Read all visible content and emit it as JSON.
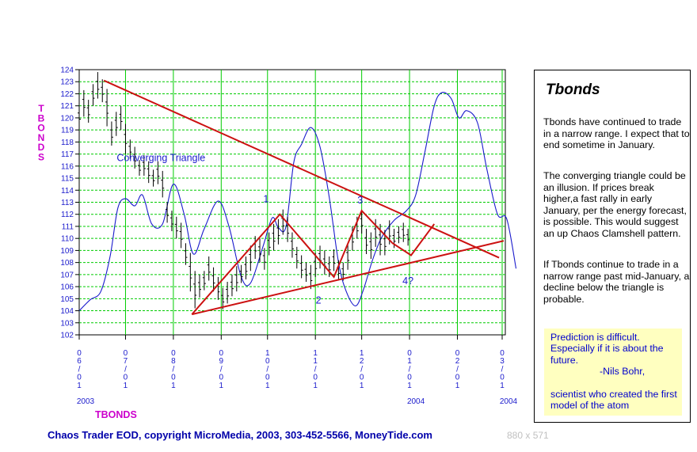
{
  "chart_data": {
    "type": "bar",
    "subtype": "ohlc-price-with-overlay-line",
    "symbol": "TBONDS",
    "ylabel_vertical": "TBONDS",
    "ylim": [
      102,
      124
    ],
    "y_ticks": [
      102,
      103,
      104,
      105,
      106,
      107,
      108,
      109,
      110,
      111,
      112,
      113,
      114,
      115,
      116,
      117,
      118,
      119,
      120,
      121,
      122,
      123,
      124
    ],
    "x_ticks": [
      {
        "date": "2003-06-01",
        "label": [
          "0",
          "6",
          "/",
          "0",
          "1"
        ]
      },
      {
        "date": "2003-07-01",
        "label": [
          "0",
          "7",
          "/",
          "0",
          "1"
        ]
      },
      {
        "date": "2003-08-01",
        "label": [
          "0",
          "8",
          "/",
          "0",
          "1"
        ]
      },
      {
        "date": "2003-09-01",
        "label": [
          "0",
          "9",
          "/",
          "0",
          "1"
        ]
      },
      {
        "date": "2003-10-01",
        "label": [
          "1",
          "0",
          "/",
          "0",
          "1"
        ]
      },
      {
        "date": "2003-11-01",
        "label": [
          "1",
          "1",
          "/",
          "0",
          "1"
        ]
      },
      {
        "date": "2003-12-01",
        "label": [
          "1",
          "2",
          "/",
          "0",
          "1"
        ]
      },
      {
        "date": "2004-01-01",
        "label": [
          "0",
          "1",
          "/",
          "0",
          "1"
        ]
      },
      {
        "date": "2004-02-01",
        "label": [
          "0",
          "2",
          "/",
          "0",
          "1"
        ]
      },
      {
        "date": "2004-03-01",
        "label": [
          "0",
          "3",
          "/",
          "0",
          "1"
        ]
      }
    ],
    "year_labels": [
      {
        "date": "2003-06-01",
        "text": "2003"
      },
      {
        "date": "2004-01-01",
        "text": "2004"
      },
      {
        "date": "2004-03-01",
        "text": "2004"
      }
    ],
    "grid": true,
    "price_bars": [
      {
        "date": "2003-06-01",
        "high": 121.0,
        "low": 119.3
      },
      {
        "date": "2003-06-04",
        "high": 122.3,
        "low": 120.1
      },
      {
        "date": "2003-06-07",
        "high": 121.5,
        "low": 119.6
      },
      {
        "date": "2003-06-10",
        "high": 122.8,
        "low": 121.0
      },
      {
        "date": "2003-06-13",
        "high": 123.8,
        "low": 121.6
      },
      {
        "date": "2003-06-16",
        "high": 123.2,
        "low": 121.3
      },
      {
        "date": "2003-06-19",
        "high": 122.4,
        "low": 119.3
      },
      {
        "date": "2003-06-22",
        "high": 119.7,
        "low": 117.7
      },
      {
        "date": "2003-06-25",
        "high": 120.5,
        "low": 118.5
      },
      {
        "date": "2003-06-28",
        "high": 121.0,
        "low": 119.0
      },
      {
        "date": "2003-07-01",
        "high": 119.5,
        "low": 117.0
      },
      {
        "date": "2003-07-04",
        "high": 118.2,
        "low": 116.6
      },
      {
        "date": "2003-07-07",
        "high": 117.6,
        "low": 115.8
      },
      {
        "date": "2003-07-10",
        "high": 116.5,
        "low": 115.2
      },
      {
        "date": "2003-07-13",
        "high": 116.9,
        "low": 115.2
      },
      {
        "date": "2003-07-16",
        "high": 116.4,
        "low": 114.6
      },
      {
        "date": "2003-07-19",
        "high": 115.7,
        "low": 114.3
      },
      {
        "date": "2003-07-22",
        "high": 116.4,
        "low": 114.5
      },
      {
        "date": "2003-07-25",
        "high": 115.6,
        "low": 113.4
      },
      {
        "date": "2003-07-28",
        "high": 113.0,
        "low": 111.3
      },
      {
        "date": "2003-07-31",
        "high": 112.3,
        "low": 110.6
      },
      {
        "date": "2003-08-03",
        "high": 111.8,
        "low": 110.0
      },
      {
        "date": "2003-08-06",
        "high": 111.3,
        "low": 109.2
      },
      {
        "date": "2003-08-09",
        "high": 109.6,
        "low": 107.8
      },
      {
        "date": "2003-08-12",
        "high": 108.8,
        "low": 105.6
      },
      {
        "date": "2003-08-15",
        "high": 107.3,
        "low": 104.2
      },
      {
        "date": "2003-08-18",
        "high": 107.0,
        "low": 105.1
      },
      {
        "date": "2003-08-21",
        "high": 107.3,
        "low": 105.7
      },
      {
        "date": "2003-08-24",
        "high": 108.5,
        "low": 106.5
      },
      {
        "date": "2003-08-27",
        "high": 107.6,
        "low": 105.6
      },
      {
        "date": "2003-08-30",
        "high": 106.8,
        "low": 104.9
      },
      {
        "date": "2003-09-02",
        "high": 105.9,
        "low": 104.1
      },
      {
        "date": "2003-09-05",
        "high": 106.4,
        "low": 104.6
      },
      {
        "date": "2003-09-08",
        "high": 107.0,
        "low": 105.2
      },
      {
        "date": "2003-09-11",
        "high": 107.7,
        "low": 105.6
      },
      {
        "date": "2003-09-14",
        "high": 107.8,
        "low": 106.3
      },
      {
        "date": "2003-09-17",
        "high": 108.5,
        "low": 106.6
      },
      {
        "date": "2003-09-20",
        "high": 109.4,
        "low": 107.3
      },
      {
        "date": "2003-09-23",
        "high": 110.2,
        "low": 108.3
      },
      {
        "date": "2003-09-26",
        "high": 110.0,
        "low": 108.0
      },
      {
        "date": "2003-09-29",
        "high": 109.2,
        "low": 107.4
      },
      {
        "date": "2003-10-02",
        "high": 110.5,
        "low": 108.6
      },
      {
        "date": "2003-10-05",
        "high": 111.2,
        "low": 109.0
      },
      {
        "date": "2003-10-08",
        "high": 111.6,
        "low": 109.5
      },
      {
        "date": "2003-10-11",
        "high": 112.4,
        "low": 110.3
      },
      {
        "date": "2003-10-14",
        "high": 111.8,
        "low": 109.7
      },
      {
        "date": "2003-10-17",
        "high": 110.5,
        "low": 108.4
      },
      {
        "date": "2003-10-20",
        "high": 109.3,
        "low": 107.5
      },
      {
        "date": "2003-10-23",
        "high": 108.6,
        "low": 106.7
      },
      {
        "date": "2003-10-26",
        "high": 108.0,
        "low": 106.4
      },
      {
        "date": "2003-10-29",
        "high": 107.8,
        "low": 105.8
      },
      {
        "date": "2003-11-01",
        "high": 108.8,
        "low": 106.8
      },
      {
        "date": "2003-11-04",
        "high": 109.4,
        "low": 107.5
      },
      {
        "date": "2003-11-07",
        "high": 109.0,
        "low": 107.0
      },
      {
        "date": "2003-11-10",
        "high": 108.5,
        "low": 106.8
      },
      {
        "date": "2003-11-13",
        "high": 109.1,
        "low": 107.3
      },
      {
        "date": "2003-11-16",
        "high": 108.2,
        "low": 106.5
      },
      {
        "date": "2003-11-19",
        "high": 108.0,
        "low": 106.5
      },
      {
        "date": "2003-11-22",
        "high": 109.6,
        "low": 107.4
      },
      {
        "date": "2003-11-25",
        "high": 111.0,
        "low": 109.0
      },
      {
        "date": "2003-11-28",
        "high": 111.8,
        "low": 110.0
      },
      {
        "date": "2003-12-01",
        "high": 112.3,
        "low": 110.4
      },
      {
        "date": "2003-12-04",
        "high": 110.8,
        "low": 108.7
      },
      {
        "date": "2003-12-07",
        "high": 110.5,
        "low": 108.3
      },
      {
        "date": "2003-12-10",
        "high": 111.6,
        "low": 109.3
      },
      {
        "date": "2003-12-13",
        "high": 111.2,
        "low": 108.6
      },
      {
        "date": "2003-12-16",
        "high": 110.7,
        "low": 108.6
      },
      {
        "date": "2003-12-19",
        "high": 111.5,
        "low": 109.5
      },
      {
        "date": "2003-12-22",
        "high": 110.8,
        "low": 109.2
      },
      {
        "date": "2003-12-25",
        "high": 111.0,
        "low": 109.6
      },
      {
        "date": "2003-12-28",
        "high": 111.3,
        "low": 109.7
      },
      {
        "date": "2003-12-31",
        "high": 110.8,
        "low": 109.4
      }
    ],
    "overlay_line": {
      "color": "#1a1acc",
      "points": [
        [
          "2003-06-01",
          104.0
        ],
        [
          "2003-06-08",
          104.9
        ],
        [
          "2003-06-15",
          105.6
        ],
        [
          "2003-06-21",
          108.5
        ],
        [
          "2003-06-26",
          112.5
        ],
        [
          "2003-07-01",
          113.3
        ],
        [
          "2003-07-07",
          112.7
        ],
        [
          "2003-07-12",
          113.6
        ],
        [
          "2003-07-18",
          111.2
        ],
        [
          "2003-07-25",
          111.2
        ],
        [
          "2003-08-01",
          114.5
        ],
        [
          "2003-08-08",
          112.0
        ],
        [
          "2003-08-14",
          108.7
        ],
        [
          "2003-08-21",
          110.8
        ],
        [
          "2003-08-30",
          113.1
        ],
        [
          "2003-09-06",
          111.0
        ],
        [
          "2003-09-14",
          106.8
        ],
        [
          "2003-09-20",
          106.3
        ],
        [
          "2003-09-28",
          109.3
        ],
        [
          "2003-10-04",
          111.7
        ],
        [
          "2003-10-08",
          110.9
        ],
        [
          "2003-10-13",
          111.0
        ],
        [
          "2003-10-18",
          116.3
        ],
        [
          "2003-10-23",
          117.8
        ],
        [
          "2003-10-29",
          119.2
        ],
        [
          "2003-11-04",
          117.6
        ],
        [
          "2003-11-10",
          113.4
        ],
        [
          "2003-11-16",
          108.0
        ],
        [
          "2003-11-21",
          105.6
        ],
        [
          "2003-11-27",
          104.4
        ],
        [
          "2003-12-02",
          105.7
        ],
        [
          "2003-12-08",
          108.2
        ],
        [
          "2003-12-14",
          110.1
        ],
        [
          "2003-12-22",
          111.5
        ],
        [
          "2003-12-30",
          112.3
        ],
        [
          "2004-01-05",
          113.6
        ],
        [
          "2004-01-11",
          117.2
        ],
        [
          "2004-01-17",
          121.0
        ],
        [
          "2004-01-22",
          122.1
        ],
        [
          "2004-01-28",
          121.6
        ],
        [
          "2004-02-02",
          120.0
        ],
        [
          "2004-02-07",
          120.6
        ],
        [
          "2004-02-14",
          119.6
        ],
        [
          "2004-02-20",
          115.8
        ],
        [
          "2004-02-27",
          112.0
        ],
        [
          "2004-03-04",
          111.6
        ],
        [
          "2004-03-10",
          107.5
        ]
      ]
    },
    "trendlines": [
      {
        "name": "upper-triangle-line",
        "from": [
          "2003-06-17",
          123.1
        ],
        "to": [
          "2004-02-28",
          108.4
        ]
      },
      {
        "name": "lower-triangle-line",
        "from": [
          "2003-08-13",
          103.7
        ],
        "to": [
          "2004-03-02",
          109.8
        ]
      },
      {
        "name": "zigzag",
        "points": [
          [
            "2003-08-13",
            103.7
          ],
          [
            "2003-10-09",
            112.0
          ],
          [
            "2003-11-13",
            106.8
          ],
          [
            "2003-12-01",
            112.3
          ],
          [
            "2003-12-21",
            109.6
          ],
          [
            "2004-01-02",
            108.6
          ],
          [
            "2004-01-17",
            111.2
          ]
        ]
      }
    ],
    "annotations": [
      {
        "text": "Converging Triangle",
        "date": "2003-07-24",
        "price": 116.4
      },
      {
        "text": "1",
        "date": "2003-09-30",
        "price": 113.0
      },
      {
        "text": "2",
        "date": "2003-11-03",
        "price": 104.6
      },
      {
        "text": "3",
        "date": "2003-11-30",
        "price": 112.9
      },
      {
        "text": "4?",
        "date": "2003-12-31",
        "price": 106.2
      }
    ],
    "x_axis_title": "TBONDS"
  },
  "sidebar": {
    "title": "Tbonds",
    "paragraphs": [
      "Tbonds have continued to trade in a narrow range. I expect that to end sometime in January.",
      "The converging triangle could be an illusion. If prices break higher,a fast rally in early January,  per the energy forecast, is possible. This would suggest an up Chaos Clamshell pattern.",
      "If Tbonds continue to trade in a narrow range past mid-January, a decline below the triangle is probable."
    ],
    "quote": {
      "line1": "Prediction is difficult. Especially if it is about the future.",
      "author": "-Nils Bohr,",
      "line2": "scientist who created the first model of the atom"
    }
  },
  "footer": {
    "credit": "Chaos Trader EOD, copyright MicroMedia, 2003, 303-452-5566, MoneyTide.com",
    "dimensions": "880 x 571"
  },
  "colors": {
    "grid": "#00cc00",
    "bars": "#000000",
    "overlay": "#1a1acc",
    "trendlines": "#cc1111",
    "annotation_text": "#1a1acc",
    "axis_text": "#1a1acc",
    "symbol_label": "#cc00cc"
  }
}
